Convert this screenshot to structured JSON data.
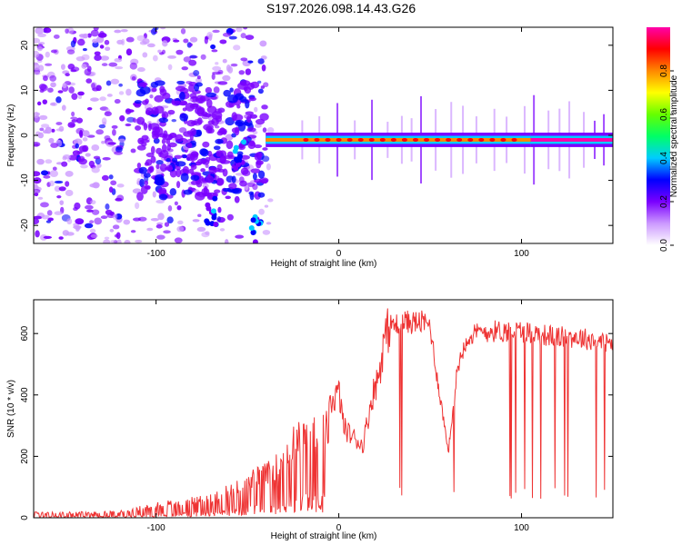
{
  "title": "S197.2026.098.14.43.G26",
  "colors": {
    "line": "#ee3333",
    "colorbar": [
      "#ffffff",
      "#cc99ff",
      "#7a00ff",
      "#0000ff",
      "#00ccff",
      "#00ff66",
      "#66ff00",
      "#ffff00",
      "#ff8800",
      "#ff0000",
      "#ff00aa"
    ]
  },
  "chart_data": [
    {
      "type": "heatmap",
      "title": "",
      "xlabel": "Height of straight line (km)",
      "ylabel": "Frequency (Hz)",
      "xlim": [
        -167,
        150
      ],
      "ylim": [
        -24,
        24
      ],
      "xticks": [
        -100,
        0,
        100
      ],
      "yticks": [
        20,
        10,
        0,
        -10,
        -20
      ],
      "xtick_labels": [
        "-100",
        "0",
        "100"
      ],
      "ytick_labels": [
        "20",
        "10",
        "0",
        "-10",
        "-20"
      ],
      "colorbar": {
        "label": "Normalized spectral amplitude",
        "range": [
          0,
          1
        ],
        "ticks": [
          "0.0",
          "0.2",
          "0.4",
          "0.6",
          "0.8"
        ]
      },
      "description_regions": [
        {
          "x_range": [
            -167,
            -110
          ],
          "freq_range": [
            -24,
            24
          ],
          "amplitude": 0.1
        },
        {
          "x_range": [
            -110,
            -40
          ],
          "freq_range": [
            -24,
            24
          ],
          "amplitude": 0.2
        },
        {
          "x_range": [
            -40,
            105
          ],
          "freq_center": -1,
          "amplitude": 0.75
        },
        {
          "x_range": [
            105,
            150
          ],
          "freq_center": -1,
          "amplitude": 0.95
        }
      ]
    },
    {
      "type": "line",
      "title": "",
      "xlabel": "Height of straight line (km)",
      "ylabel": "SNR (10 * v/v)",
      "xlim": [
        -167,
        150
      ],
      "ylim": [
        0,
        710
      ],
      "xticks": [
        -100,
        0,
        100
      ],
      "yticks": [
        0,
        200,
        400,
        600
      ],
      "xtick_labels": [
        "-100",
        "0",
        "100"
      ],
      "ytick_labels": [
        "0",
        "200",
        "400",
        "600"
      ],
      "series": [
        {
          "name": "SNR",
          "x": [
            -167,
            -150,
            -130,
            -115,
            -110,
            -100,
            -90,
            -80,
            -70,
            -60,
            -50,
            -40,
            -35,
            -30,
            -25,
            -20,
            -15,
            -10,
            -5,
            0,
            3,
            6,
            10,
            13,
            15,
            18,
            22,
            25,
            28,
            30,
            35,
            40,
            45,
            50,
            53,
            55,
            58,
            60,
            65,
            70,
            75,
            80,
            90,
            100,
            110,
            120,
            130,
            140,
            150
          ],
          "values": [
            20,
            20,
            20,
            25,
            40,
            50,
            60,
            70,
            80,
            110,
            150,
            180,
            200,
            250,
            300,
            330,
            330,
            330,
            380,
            420,
            300,
            280,
            260,
            240,
            300,
            400,
            480,
            600,
            640,
            640,
            650,
            650,
            650,
            640,
            500,
            420,
            300,
            220,
            500,
            600,
            610,
            620,
            620,
            620,
            610,
            600,
            600,
            590,
            580
          ]
        }
      ]
    }
  ]
}
